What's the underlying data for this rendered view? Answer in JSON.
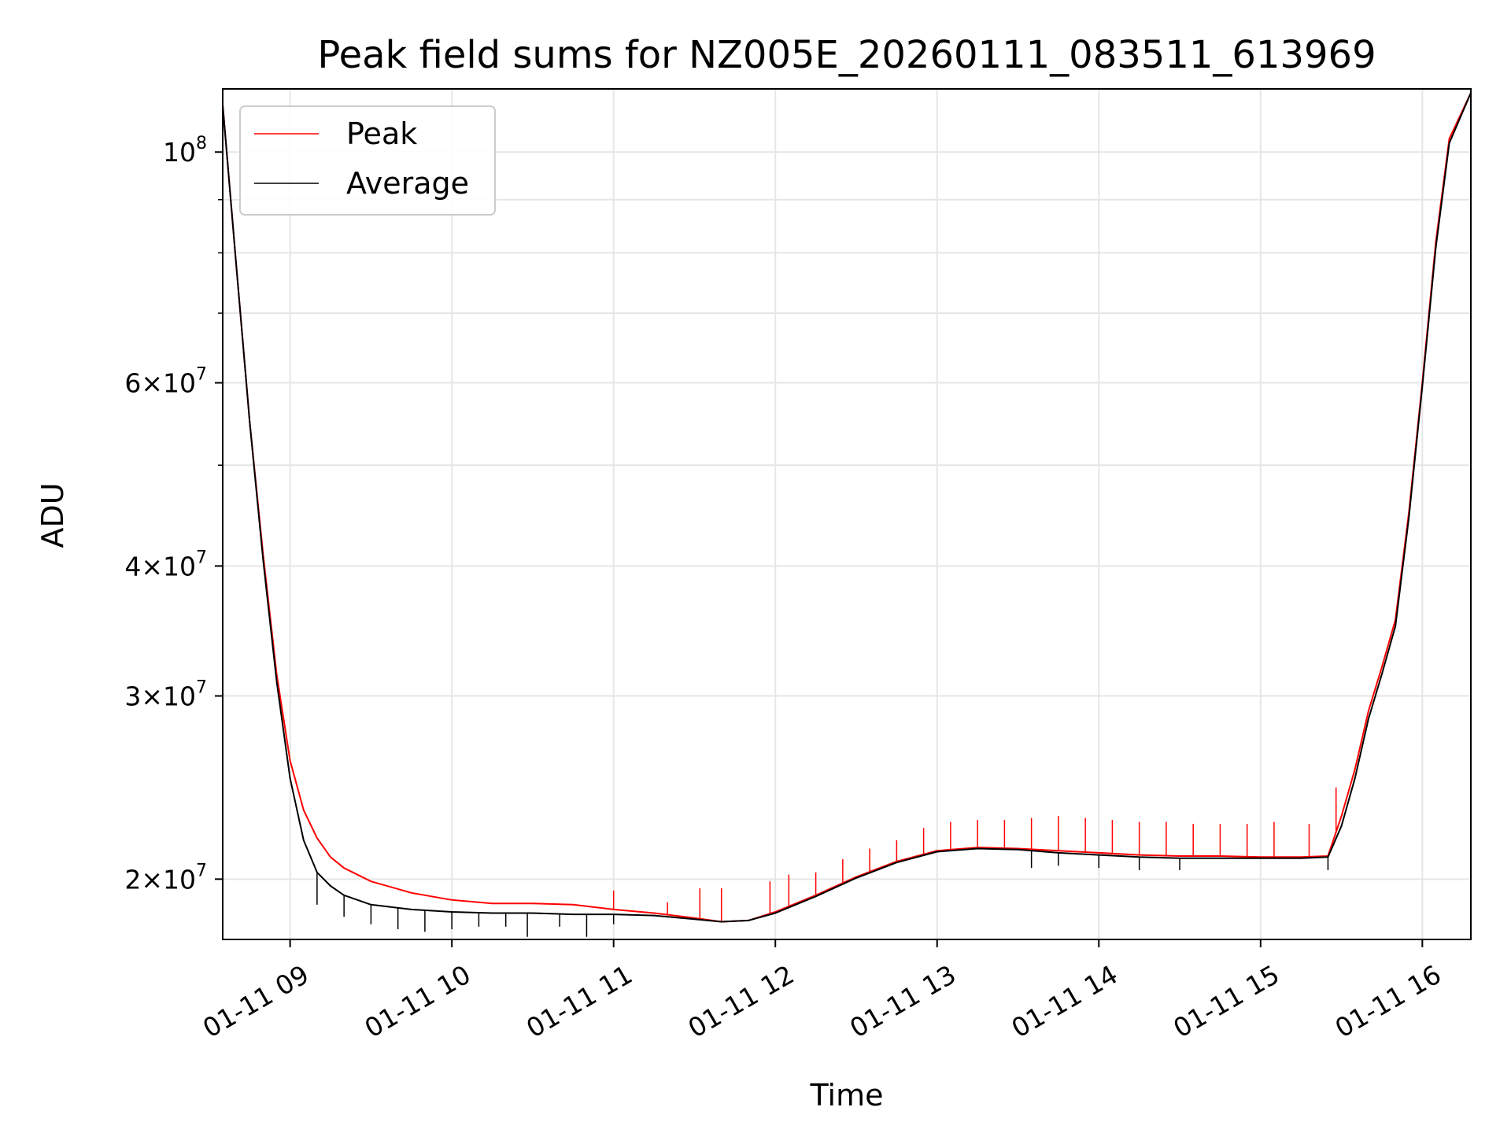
{
  "chart_data": {
    "type": "line",
    "title": "Peak field sums for NZ005E_20260111_083511_613969",
    "xlabel": "Time",
    "ylabel": "ADU",
    "yscale": "log",
    "ylim": [
      17500000,
      115000000
    ],
    "xlim": [
      "2026-01-11 08:35",
      "2026-01-11 16:18"
    ],
    "grid": true,
    "legend_position": "top-left",
    "x_ticks": [
      {
        "time": "2026-01-11 09:00",
        "label": "01-11 09"
      },
      {
        "time": "2026-01-11 10:00",
        "label": "01-11 10"
      },
      {
        "time": "2026-01-11 11:00",
        "label": "01-11 11"
      },
      {
        "time": "2026-01-11 12:00",
        "label": "01-11 12"
      },
      {
        "time": "2026-01-11 13:00",
        "label": "01-11 13"
      },
      {
        "time": "2026-01-11 14:00",
        "label": "01-11 14"
      },
      {
        "time": "2026-01-11 15:00",
        "label": "01-11 15"
      },
      {
        "time": "2026-01-11 16:00",
        "label": "01-11 16"
      }
    ],
    "y_ticks": [
      {
        "value": 20000000,
        "mantissa": "2",
        "exponent": "7"
      },
      {
        "value": 30000000,
        "mantissa": "3",
        "exponent": "7"
      },
      {
        "value": 40000000,
        "mantissa": "4",
        "exponent": "7"
      },
      {
        "value": 60000000,
        "mantissa": "6",
        "exponent": "7"
      },
      {
        "value": 100000000,
        "mantissa": "",
        "exponent": "8"
      }
    ],
    "series": [
      {
        "name": "Peak",
        "color": "#ff0000",
        "baseline": [
          [
            "2026-01-11 08:35",
            111000000
          ],
          [
            "2026-01-11 08:40",
            78000000
          ],
          [
            "2026-01-11 08:45",
            55000000
          ],
          [
            "2026-01-11 08:50",
            41000000
          ],
          [
            "2026-01-11 08:55",
            31500000
          ],
          [
            "2026-01-11 09:00",
            26000000
          ],
          [
            "2026-01-11 09:05",
            23300000
          ],
          [
            "2026-01-11 09:10",
            21900000
          ],
          [
            "2026-01-11 09:15",
            21000000
          ],
          [
            "2026-01-11 09:20",
            20500000
          ],
          [
            "2026-01-11 09:30",
            19900000
          ],
          [
            "2026-01-11 09:45",
            19400000
          ],
          [
            "2026-01-11 10:00",
            19100000
          ],
          [
            "2026-01-11 10:15",
            18950000
          ],
          [
            "2026-01-11 10:30",
            18950000
          ],
          [
            "2026-01-11 10:45",
            18900000
          ],
          [
            "2026-01-11 11:00",
            18700000
          ],
          [
            "2026-01-11 11:15",
            18550000
          ],
          [
            "2026-01-11 11:30",
            18350000
          ],
          [
            "2026-01-11 11:40",
            18200000
          ],
          [
            "2026-01-11 11:50",
            18250000
          ],
          [
            "2026-01-11 12:00",
            18600000
          ],
          [
            "2026-01-11 12:15",
            19300000
          ],
          [
            "2026-01-11 12:30",
            20100000
          ],
          [
            "2026-01-11 12:45",
            20800000
          ],
          [
            "2026-01-11 13:00",
            21300000
          ],
          [
            "2026-01-11 13:15",
            21450000
          ],
          [
            "2026-01-11 13:30",
            21400000
          ],
          [
            "2026-01-11 13:45",
            21300000
          ],
          [
            "2026-01-11 14:00",
            21200000
          ],
          [
            "2026-01-11 14:15",
            21100000
          ],
          [
            "2026-01-11 14:30",
            21050000
          ],
          [
            "2026-01-11 14:45",
            21050000
          ],
          [
            "2026-01-11 15:00",
            21000000
          ],
          [
            "2026-01-11 15:15",
            21000000
          ],
          [
            "2026-01-11 15:25",
            21050000
          ],
          [
            "2026-01-11 15:30",
            23000000
          ],
          [
            "2026-01-11 15:35",
            25500000
          ],
          [
            "2026-01-11 15:40",
            29000000
          ],
          [
            "2026-01-11 15:45",
            32000000
          ],
          [
            "2026-01-11 15:50",
            35500000
          ],
          [
            "2026-01-11 15:55",
            45000000
          ],
          [
            "2026-01-11 16:00",
            60000000
          ],
          [
            "2026-01-11 16:05",
            82000000
          ],
          [
            "2026-01-11 16:10",
            103000000
          ],
          [
            "2026-01-11 16:18",
            114000000
          ]
        ],
        "spikes": [
          [
            "2026-01-11 11:00",
            19500000
          ],
          [
            "2026-01-11 11:20",
            19000000
          ],
          [
            "2026-01-11 11:32",
            19600000
          ],
          [
            "2026-01-11 11:40",
            19600000
          ],
          [
            "2026-01-11 11:58",
            19900000
          ],
          [
            "2026-01-11 12:05",
            20200000
          ],
          [
            "2026-01-11 12:15",
            20300000
          ],
          [
            "2026-01-11 12:25",
            20900000
          ],
          [
            "2026-01-11 12:35",
            21400000
          ],
          [
            "2026-01-11 12:45",
            21800000
          ],
          [
            "2026-01-11 12:55",
            22400000
          ],
          [
            "2026-01-11 13:05",
            22700000
          ],
          [
            "2026-01-11 13:15",
            22800000
          ],
          [
            "2026-01-11 13:25",
            22800000
          ],
          [
            "2026-01-11 13:35",
            22900000
          ],
          [
            "2026-01-11 13:45",
            23000000
          ],
          [
            "2026-01-11 13:55",
            22900000
          ],
          [
            "2026-01-11 14:05",
            22800000
          ],
          [
            "2026-01-11 14:15",
            22700000
          ],
          [
            "2026-01-11 14:25",
            22700000
          ],
          [
            "2026-01-11 14:35",
            22600000
          ],
          [
            "2026-01-11 14:45",
            22600000
          ],
          [
            "2026-01-11 14:55",
            22600000
          ],
          [
            "2026-01-11 15:05",
            22700000
          ],
          [
            "2026-01-11 15:18",
            22600000
          ],
          [
            "2026-01-11 15:28",
            24500000
          ]
        ]
      },
      {
        "name": "Average",
        "color": "#000000",
        "baseline": [
          [
            "2026-01-11 08:35",
            111000000
          ],
          [
            "2026-01-11 08:40",
            78000000
          ],
          [
            "2026-01-11 08:45",
            55000000
          ],
          [
            "2026-01-11 08:50",
            40500000
          ],
          [
            "2026-01-11 08:55",
            31000000
          ],
          [
            "2026-01-11 09:00",
            25000000
          ],
          [
            "2026-01-11 09:05",
            21800000
          ],
          [
            "2026-01-11 09:10",
            20300000
          ],
          [
            "2026-01-11 09:15",
            19700000
          ],
          [
            "2026-01-11 09:20",
            19300000
          ],
          [
            "2026-01-11 09:30",
            18900000
          ],
          [
            "2026-01-11 09:45",
            18700000
          ],
          [
            "2026-01-11 10:00",
            18600000
          ],
          [
            "2026-01-11 10:15",
            18550000
          ],
          [
            "2026-01-11 10:30",
            18550000
          ],
          [
            "2026-01-11 10:45",
            18500000
          ],
          [
            "2026-01-11 11:00",
            18500000
          ],
          [
            "2026-01-11 11:15",
            18450000
          ],
          [
            "2026-01-11 11:30",
            18300000
          ],
          [
            "2026-01-11 11:40",
            18200000
          ],
          [
            "2026-01-11 11:50",
            18250000
          ],
          [
            "2026-01-11 12:00",
            18550000
          ],
          [
            "2026-01-11 12:15",
            19250000
          ],
          [
            "2026-01-11 12:30",
            20050000
          ],
          [
            "2026-01-11 12:45",
            20750000
          ],
          [
            "2026-01-11 13:00",
            21250000
          ],
          [
            "2026-01-11 13:15",
            21400000
          ],
          [
            "2026-01-11 13:30",
            21350000
          ],
          [
            "2026-01-11 13:45",
            21200000
          ],
          [
            "2026-01-11 14:00",
            21100000
          ],
          [
            "2026-01-11 14:15",
            21000000
          ],
          [
            "2026-01-11 14:30",
            20950000
          ],
          [
            "2026-01-11 14:45",
            20950000
          ],
          [
            "2026-01-11 15:00",
            20950000
          ],
          [
            "2026-01-11 15:15",
            20950000
          ],
          [
            "2026-01-11 15:25",
            21000000
          ],
          [
            "2026-01-11 15:30",
            22500000
          ],
          [
            "2026-01-11 15:35",
            25000000
          ],
          [
            "2026-01-11 15:40",
            28500000
          ],
          [
            "2026-01-11 15:45",
            31500000
          ],
          [
            "2026-01-11 15:50",
            35000000
          ],
          [
            "2026-01-11 15:55",
            44500000
          ],
          [
            "2026-01-11 16:00",
            59500000
          ],
          [
            "2026-01-11 16:05",
            81000000
          ],
          [
            "2026-01-11 16:10",
            102000000
          ],
          [
            "2026-01-11 16:18",
            114000000
          ]
        ],
        "dips": [
          [
            "2026-01-11 09:10",
            18900000
          ],
          [
            "2026-01-11 09:20",
            18400000
          ],
          [
            "2026-01-11 09:30",
            18100000
          ],
          [
            "2026-01-11 09:40",
            17900000
          ],
          [
            "2026-01-11 09:50",
            17800000
          ],
          [
            "2026-01-11 10:00",
            17900000
          ],
          [
            "2026-01-11 10:10",
            18000000
          ],
          [
            "2026-01-11 10:20",
            18000000
          ],
          [
            "2026-01-11 10:28",
            17600000
          ],
          [
            "2026-01-11 10:40",
            18000000
          ],
          [
            "2026-01-11 10:50",
            17600000
          ],
          [
            "2026-01-11 11:00",
            18100000
          ],
          [
            "2026-01-11 13:35",
            20500000
          ],
          [
            "2026-01-11 13:45",
            20600000
          ],
          [
            "2026-01-11 14:00",
            20500000
          ],
          [
            "2026-01-11 14:15",
            20400000
          ],
          [
            "2026-01-11 14:30",
            20400000
          ],
          [
            "2026-01-11 15:25",
            20400000
          ]
        ]
      }
    ]
  }
}
